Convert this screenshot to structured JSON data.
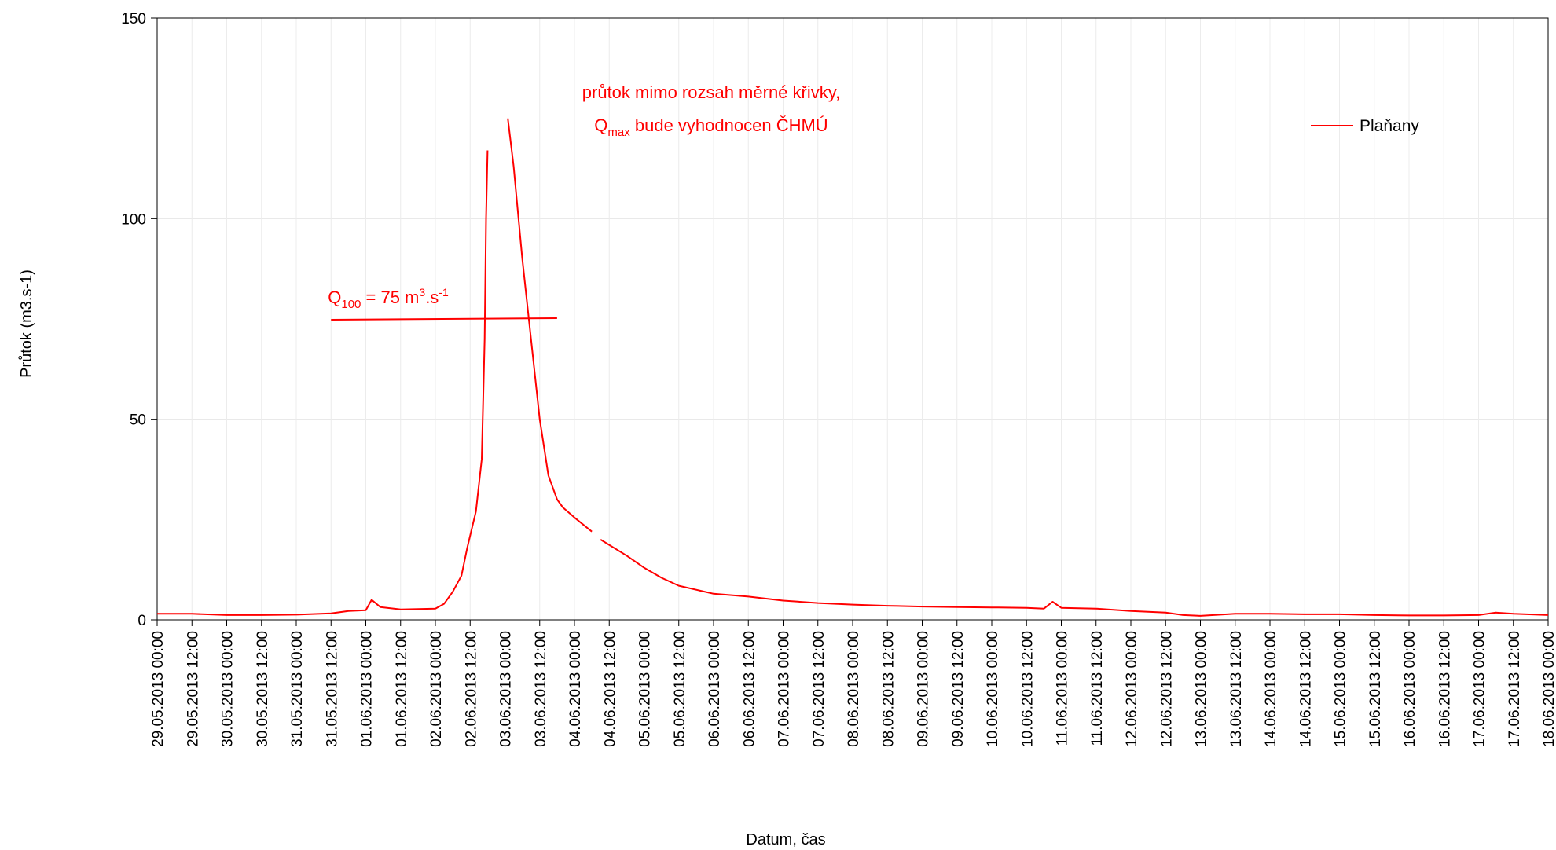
{
  "chart_data": {
    "type": "line",
    "xlabel": "Datum, čas",
    "ylabel": "Průtok (m3.s-1)",
    "ylim": [
      0,
      150
    ],
    "yticks": [
      0,
      50,
      100,
      150
    ],
    "x_start": "29.05.2013 00:00",
    "x_end": "18.06.2013 00:00",
    "x_tick_labels": [
      "29.05.2013 00:00",
      "29.05.2013 12:00",
      "30.05.2013 00:00",
      "30.05.2013 12:00",
      "31.05.2013 00:00",
      "31.05.2013 12:00",
      "01.06.2013 00:00",
      "01.06.2013 12:00",
      "02.06.2013 00:00",
      "02.06.2013 12:00",
      "03.06.2013 00:00",
      "03.06.2013 12:00",
      "04.06.2013 00:00",
      "04.06.2013 12:00",
      "05.06.2013 00:00",
      "05.06.2013 12:00",
      "06.06.2013 00:00",
      "06.06.2013 12:00",
      "07.06.2013 00:00",
      "07.06.2013 12:00",
      "08.06.2013 00:00",
      "08.06.2013 12:00",
      "09.06.2013 00:00",
      "09.06.2013 12:00",
      "10.06.2013 00:00",
      "10.06.2013 12:00",
      "11.06.2013 00:00",
      "11.06.2013 12:00",
      "12.06.2013 00:00",
      "12.06.2013 12:00",
      "13.06.2013 00:00",
      "13.06.2013 12:00",
      "14.06.2013 00:00",
      "14.06.2013 12:00",
      "15.06.2013 00:00",
      "15.06.2013 12:00",
      "16.06.2013 00:00",
      "16.06.2013 12:00",
      "17.06.2013 00:00",
      "17.06.2013 12:00",
      "18.06.2013 00:00"
    ],
    "grid": true,
    "legend_position": "top-right",
    "series": [
      {
        "name": "Plaňany",
        "color": "#ff0000",
        "segments": [
          [
            [
              "29.05.2013 00:00",
              1.5
            ],
            [
              "29.05.2013 12:00",
              1.5
            ],
            [
              "30.05.2013 00:00",
              1.2
            ],
            [
              "30.05.2013 12:00",
              1.2
            ],
            [
              "31.05.2013 00:00",
              1.3
            ],
            [
              "31.05.2013 12:00",
              1.6
            ],
            [
              "31.05.2013 18:00",
              2.2
            ],
            [
              "01.06.2013 00:00",
              2.4
            ],
            [
              "01.06.2013 02:00",
              5.0
            ],
            [
              "01.06.2013 05:00",
              3.2
            ],
            [
              "01.06.2013 12:00",
              2.6
            ],
            [
              "02.06.2013 00:00",
              2.8
            ],
            [
              "02.06.2013 03:00",
              4.0
            ],
            [
              "02.06.2013 06:00",
              7.0
            ],
            [
              "02.06.2013 09:00",
              11.0
            ],
            [
              "02.06.2013 11:00",
              18.0
            ],
            [
              "02.06.2013 14:00",
              27.0
            ],
            [
              "02.06.2013 16:00",
              40.0
            ],
            [
              "02.06.2013 17:00",
              70.0
            ],
            [
              "02.06.2013 17:30",
              100.0
            ],
            [
              "02.06.2013 18:00",
              117.0
            ]
          ],
          [
            [
              "03.06.2013 01:00",
              125.0
            ],
            [
              "03.06.2013 03:00",
              113.0
            ],
            [
              "03.06.2013 06:00",
              90.0
            ],
            [
              "03.06.2013 09:00",
              70.0
            ],
            [
              "03.06.2013 12:00",
              50.0
            ],
            [
              "03.06.2013 15:00",
              36.0
            ],
            [
              "03.06.2013 18:00",
              30.0
            ],
            [
              "03.06.2013 20:00",
              28.0
            ],
            [
              "04.06.2013 00:00",
              25.5
            ],
            [
              "04.06.2013 06:00",
              22.0
            ]
          ],
          [
            [
              "04.06.2013 09:00",
              20.0
            ],
            [
              "04.06.2013 18:00",
              16.0
            ],
            [
              "05.06.2013 00:00",
              13.0
            ],
            [
              "05.06.2013 06:00",
              10.5
            ],
            [
              "05.06.2013 12:00",
              8.5
            ],
            [
              "06.06.2013 00:00",
              6.5
            ],
            [
              "06.06.2013 12:00",
              5.8
            ],
            [
              "07.06.2013 00:00",
              4.8
            ],
            [
              "07.06.2013 12:00",
              4.2
            ],
            [
              "08.06.2013 00:00",
              3.8
            ],
            [
              "08.06.2013 12:00",
              3.5
            ],
            [
              "09.06.2013 00:00",
              3.3
            ],
            [
              "09.06.2013 12:00",
              3.2
            ],
            [
              "10.06.2013 00:00",
              3.1
            ],
            [
              "10.06.2013 12:00",
              3.0
            ],
            [
              "10.06.2013 18:00",
              2.8
            ],
            [
              "10.06.2013 21:00",
              4.5
            ],
            [
              "11.06.2013 00:00",
              3.0
            ],
            [
              "11.06.2013 12:00",
              2.8
            ],
            [
              "12.06.2013 00:00",
              2.2
            ],
            [
              "12.06.2013 12:00",
              1.8
            ],
            [
              "12.06.2013 18:00",
              1.2
            ],
            [
              "13.06.2013 00:00",
              1.0
            ],
            [
              "13.06.2013 12:00",
              1.5
            ],
            [
              "14.06.2013 00:00",
              1.5
            ],
            [
              "14.06.2013 12:00",
              1.4
            ],
            [
              "15.06.2013 00:00",
              1.4
            ],
            [
              "15.06.2013 12:00",
              1.2
            ],
            [
              "16.06.2013 00:00",
              1.1
            ],
            [
              "16.06.2013 12:00",
              1.1
            ],
            [
              "17.06.2013 00:00",
              1.2
            ],
            [
              "17.06.2013 06:00",
              1.8
            ],
            [
              "17.06.2013 12:00",
              1.5
            ],
            [
              "18.06.2013 00:00",
              1.2
            ]
          ]
        ]
      }
    ],
    "annotations": {
      "q100_label_base": "Q",
      "q100_label_sub": "100",
      "q100_label_mid": " = 75 m",
      "q100_label_sup1": "3",
      "q100_label_mid2": ".s",
      "q100_label_sup2": "-1",
      "q100_value": 75,
      "q100_line_from": "31.05.2013 12:00",
      "q100_line_to": "03.06.2013 18:00",
      "note_line1": "průtok mimo rozsah měrné křivky,",
      "note_line2_base": "Q",
      "note_line2_sub": "max",
      "note_line2_rest": " bude vyhodnocen ČHMÚ"
    }
  }
}
